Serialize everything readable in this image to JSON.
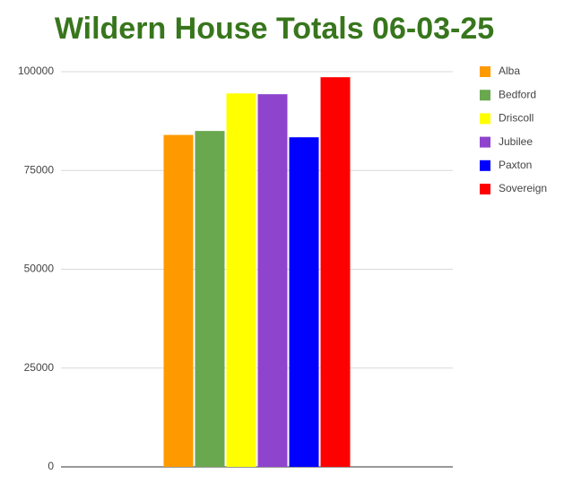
{
  "chart_data": {
    "type": "bar",
    "title": "Wildern House Totals 06-03-25",
    "categories": [
      null
    ],
    "series": [
      {
        "name": "Alba",
        "color": "#ff9900",
        "values": [
          84000
        ]
      },
      {
        "name": "Bedford",
        "color": "#6aa84f",
        "values": [
          85000
        ]
      },
      {
        "name": "Driscoll",
        "color": "#ffff00",
        "values": [
          94500
        ]
      },
      {
        "name": "Jubilee",
        "color": "#8e44cc",
        "values": [
          94300
        ]
      },
      {
        "name": "Paxton",
        "color": "#0000ff",
        "values": [
          83400
        ]
      },
      {
        "name": "Sovereign",
        "color": "#ff0000",
        "values": [
          98600
        ]
      }
    ],
    "ylim": [
      0,
      100000
    ],
    "yticks": [
      0,
      25000,
      50000,
      75000,
      100000
    ],
    "grid": true,
    "legend": "right"
  }
}
